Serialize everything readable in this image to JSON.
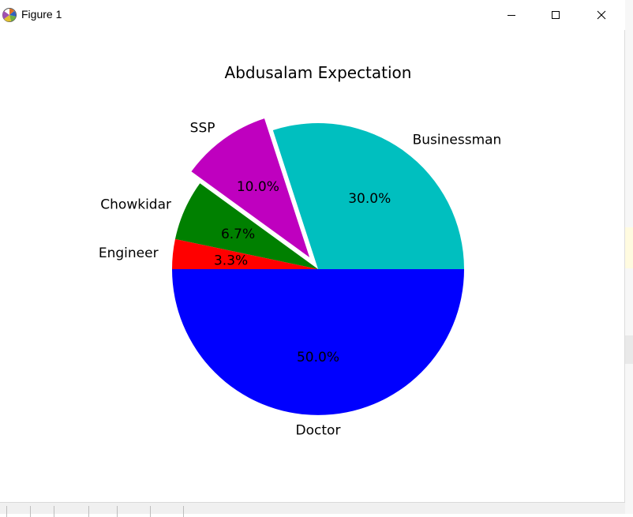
{
  "window": {
    "title": "Figure 1",
    "controls": {
      "minimize": "minimize",
      "maximize": "maximize",
      "close": "close"
    }
  },
  "colors": {
    "Engineer": "#ff0000",
    "Chowkidar": "#008000",
    "SSP": "#bf00bf",
    "Businessman": "#00bfbf",
    "Doctor": "#0000ff"
  },
  "chart_data": {
    "type": "pie",
    "title": "Abdusalam Expectation",
    "start_angle": 180,
    "counterclock": true,
    "labels": [
      "Doctor",
      "Businessman",
      "SSP",
      "Chowkidar",
      "Engineer"
    ],
    "values": [
      50.0,
      30.0,
      10.0,
      6.7,
      3.3
    ],
    "pct_labels": [
      "50.0%",
      "30.0%",
      "10.0%",
      "6.7%",
      "3.3%"
    ],
    "explode": [
      0,
      0,
      0.1,
      0,
      0
    ],
    "colors": [
      "#0000ff",
      "#00bfbf",
      "#bf00bf",
      "#008000",
      "#ff0000"
    ]
  }
}
